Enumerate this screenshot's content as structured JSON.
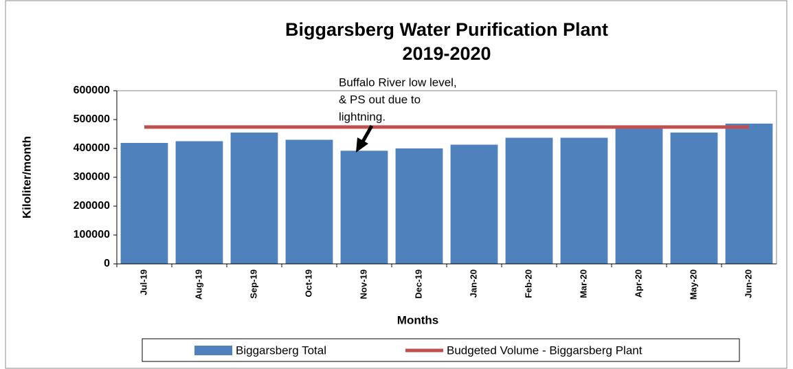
{
  "chart_data": {
    "type": "bar",
    "title": [
      "Biggarsberg Water Purification Plant",
      "2019-2020"
    ],
    "categories": [
      "Jul-19",
      "Aug-19",
      "Sep-19",
      "Oct-19",
      "Nov-19",
      "Dec-19",
      "Jan-20",
      "Feb-20",
      "Mar-20",
      "Apr-20",
      "May-20",
      "Jun-20"
    ],
    "series": [
      {
        "name": "Biggarsberg Total",
        "type": "bar",
        "color": "#4f81bd",
        "values": [
          419000,
          425000,
          455000,
          430000,
          392000,
          400000,
          413000,
          437000,
          437000,
          478000,
          455000,
          486000
        ]
      },
      {
        "name": "Budgeted Volume - Biggarsberg Plant",
        "type": "line",
        "color": "#c0504d",
        "values": [
          474000,
          474000,
          474000,
          474000,
          474000,
          474000,
          474000,
          474000,
          474000,
          474000,
          474000,
          474000
        ]
      }
    ],
    "ylim": [
      0,
      600000
    ],
    "yticks": [
      0,
      100000,
      200000,
      300000,
      400000,
      500000,
      600000
    ],
    "ylabel": "Kiloliter/month",
    "xlabel": "Months",
    "annotation": [
      "Buffalo River low level,",
      "& PS out due to",
      "lightning."
    ],
    "legend": "bottom"
  }
}
